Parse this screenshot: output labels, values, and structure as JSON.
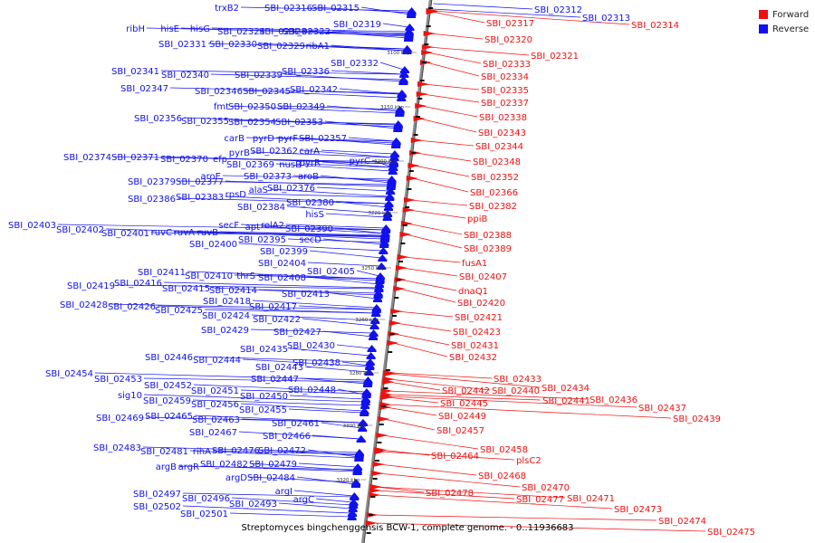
{
  "legend": {
    "forward_label": "Forward",
    "reverse_label": "Reverse",
    "forward_color": "#ee1111",
    "reverse_color": "#1111ee"
  },
  "caption": "Streptomyces bingchenggensis BCW-1, complete genome. - 0..11936683",
  "ticks": [
    "3100 kbp",
    "3150 kbp",
    "3200 kbp",
    "3220 kbp",
    "3250 kbp",
    "3260 kbp",
    "3280 kbp",
    "3300 kbp",
    "3320 kbp"
  ],
  "reverse_labels": [
    "trxB2",
    "SBI_02316",
    "SBI_02315",
    "SBI_02319",
    "ribH",
    "hisE",
    "hisG",
    "SBI_02324",
    "SBI_02323",
    "SBI_02322",
    "SBI_02331",
    "SBI_02330",
    "SBI_02329",
    "ribA1",
    "SBI_02332",
    "SBI_02341",
    "SBI_02340",
    "SBI_02339",
    "SBI_02336",
    "SBI_02347",
    "SBI_02346",
    "SBI_02345",
    "SBI_02342",
    "fmt",
    "SBI_02350",
    "SBI_02349",
    "SBI_02356",
    "SBI_02355",
    "SBI_02354",
    "SBI_02353",
    "carB",
    "pyrD",
    "pyrF",
    "SBI_02357",
    "pyrB",
    "SBI_02362",
    "carA",
    "SBI_02374",
    "SBI_02371",
    "SBI_02370",
    "efp",
    "SBI_02369",
    "nusB",
    "pyrR",
    "pyrC",
    "aroE",
    "SBI_02373",
    "aroB",
    "SBI_02379",
    "SBI_02377",
    "alaS",
    "SBI_02376",
    "SBI_02386",
    "SBI_02383",
    "rpsD",
    "SBI_02380",
    "SBI_02384",
    "hisS",
    "SBI_02403",
    "SBI_02402",
    "SBI_02401",
    "ruvC",
    "ruvA",
    "ruvB",
    "secF",
    "apt",
    "relA2",
    "SBI_02390",
    "SBI_02400",
    "SBI_02395",
    "secD",
    "SBI_02399",
    "SBI_02404",
    "SBI_02405",
    "SBI_02411",
    "SBI_02410",
    "thrS",
    "SBI_02408",
    "SBI_02419",
    "SBI_02416",
    "SBI_02415",
    "SBI_02414",
    "SBI_02413",
    "SBI_02418",
    "SBI_02417",
    "SBI_02428",
    "SBI_02426",
    "SBI_02425",
    "SBI_02424",
    "SBI_02422",
    "SBI_02429",
    "SBI_02427",
    "SBI_02435",
    "SBI_02430",
    "SBI_02446",
    "SBI_02444",
    "SBI_02438",
    "SBI_02443",
    "SBI_02454",
    "SBI_02453",
    "SBI_02447",
    "SBI_02452",
    "SBI_02451",
    "SBI_02448",
    "sig10",
    "SBI_02450",
    "SBI_02459",
    "SBI_02456",
    "SBI_02455",
    "SBI_02469",
    "SBI_02465",
    "SBI_02463",
    "SBI_02461",
    "SBI_02467",
    "SBI_02466",
    "SBI_02483",
    "SBI_02481",
    "rihA",
    "SBI_02476",
    "SBI_02472",
    "argB",
    "argR",
    "SBI_02482",
    "SBI_02479",
    "argD",
    "SBI_02484",
    "SBI_02497",
    "argI",
    "SBI_02496",
    "argC",
    "SBI_02493",
    "SBI_02502",
    "SBI_02501"
  ],
  "forward_labels": [
    "SBI_02312",
    "SBI_02313",
    "SBI_02317",
    "SBI_02314",
    "SBI_02320",
    "SBI_02321",
    "SBI_02333",
    "SBI_02334",
    "SBI_02335",
    "SBI_02337",
    "SBI_02338",
    "SBI_02343",
    "SBI_02344",
    "SBI_02348",
    "SBI_02352",
    "SBI_02366",
    "SBI_02382",
    "ppiB",
    "SBI_02388",
    "SBI_02389",
    "fusA1",
    "SBI_02407",
    "dnaQ1",
    "SBI_02420",
    "SBI_02421",
    "SBI_02423",
    "SBI_02431",
    "SBI_02432",
    "SBI_02433",
    "SBI_02442",
    "SBI_02440",
    "SBI_02434",
    "SBI_02441",
    "SBI_02436",
    "SBI_02437",
    "SBI_02439",
    "SBI_02445",
    "SBI_02449",
    "SBI_02457",
    "SBI_02458",
    "SBI_02464",
    "plsC2",
    "SBI_02468",
    "SBI_02470",
    "SBI_02478",
    "SBI_02477",
    "SBI_02471",
    "SBI_02473",
    "SBI_02474",
    "SBI_02475"
  ]
}
